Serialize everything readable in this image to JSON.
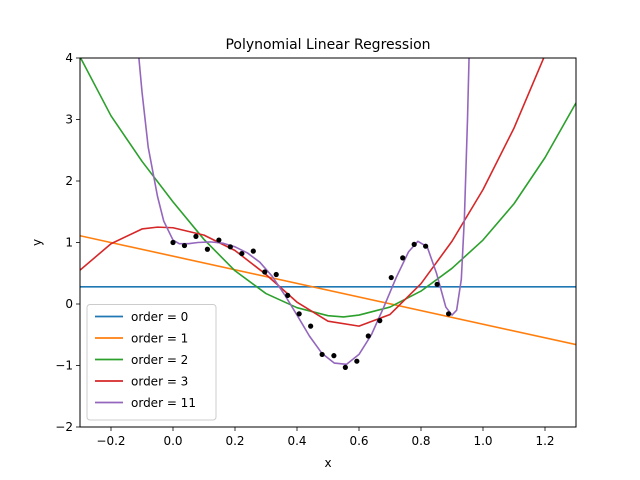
{
  "chart_data": {
    "type": "line",
    "title": "Polynomial Linear Regression",
    "xlabel": "x",
    "ylabel": "y",
    "xlim": [
      -0.3,
      1.3
    ],
    "ylim": [
      -2,
      4
    ],
    "x_ticks": [
      -0.2,
      0.0,
      0.2,
      0.4,
      0.6,
      0.8,
      1.0,
      1.2
    ],
    "x_tick_labels": [
      "−0.2",
      "0.0",
      "0.2",
      "0.4",
      "0.6",
      "0.8",
      "1.0",
      "1.2"
    ],
    "y_ticks": [
      -2,
      -1,
      0,
      1,
      2,
      3,
      4
    ],
    "y_tick_labels": [
      "−2",
      "−1",
      "0",
      "1",
      "2",
      "3",
      "4"
    ],
    "grid": false,
    "legend_position": "lower-left",
    "points": {
      "color": "#000000",
      "x": [
        0.0,
        0.037,
        0.074,
        0.111,
        0.148,
        0.185,
        0.222,
        0.259,
        0.296,
        0.333,
        0.37,
        0.407,
        0.444,
        0.481,
        0.519,
        0.556,
        0.593,
        0.63,
        0.667,
        0.704,
        0.741,
        0.778,
        0.815,
        0.852,
        0.889
      ],
      "y": [
        1.0,
        0.95,
        1.1,
        0.89,
        1.04,
        0.93,
        0.82,
        0.86,
        0.52,
        0.48,
        0.14,
        -0.16,
        -0.36,
        -0.82,
        -0.84,
        -1.03,
        -0.93,
        -0.52,
        -0.27,
        0.43,
        0.75,
        0.97,
        0.94,
        0.32,
        -0.16
      ]
    },
    "series": [
      {
        "name": "order = 0",
        "color": "#1f77b4",
        "x": [
          -0.3,
          1.3
        ],
        "y": [
          0.28,
          0.28
        ]
      },
      {
        "name": "order = 1",
        "color": "#ff7f0e",
        "x": [
          -0.3,
          1.3
        ],
        "y": [
          1.11,
          -0.66
        ]
      },
      {
        "name": "order = 2",
        "color": "#2ca02c",
        "x": [
          -0.3,
          -0.2,
          -0.1,
          0.0,
          0.1,
          0.2,
          0.3,
          0.4,
          0.5,
          0.55,
          0.6,
          0.7,
          0.8,
          0.9,
          1.0,
          1.1,
          1.2,
          1.3
        ],
        "y": [
          4.02,
          3.06,
          2.32,
          1.66,
          1.05,
          0.54,
          0.17,
          -0.06,
          -0.19,
          -0.21,
          -0.18,
          -0.05,
          0.21,
          0.58,
          1.04,
          1.63,
          2.38,
          3.27
        ]
      },
      {
        "name": "order = 3",
        "color": "#d62728",
        "x": [
          -0.3,
          -0.2,
          -0.1,
          -0.05,
          0.0,
          0.1,
          0.2,
          0.3,
          0.4,
          0.5,
          0.6,
          0.7,
          0.8,
          0.9,
          1.0,
          1.1,
          1.2
        ],
        "y": [
          0.55,
          0.98,
          1.22,
          1.25,
          1.24,
          1.12,
          0.87,
          0.48,
          0.03,
          -0.28,
          -0.36,
          -0.17,
          0.33,
          1.02,
          1.86,
          2.86,
          4.05
        ]
      },
      {
        "name": "order = 11",
        "color": "#9467bd",
        "x": [
          -0.11,
          -0.1,
          -0.08,
          -0.05,
          -0.03,
          0.0,
          0.02,
          0.05,
          0.08,
          0.12,
          0.16,
          0.2,
          0.24,
          0.28,
          0.32,
          0.36,
          0.4,
          0.44,
          0.48,
          0.52,
          0.56,
          0.6,
          0.64,
          0.68,
          0.72,
          0.76,
          0.79,
          0.82,
          0.85,
          0.88,
          0.9,
          0.915,
          0.93,
          0.94,
          0.95,
          0.955
        ],
        "y": [
          4.0,
          3.45,
          2.55,
          1.75,
          1.35,
          1.04,
          0.98,
          0.98,
          1.0,
          1.01,
          0.99,
          0.93,
          0.83,
          0.68,
          0.45,
          0.15,
          -0.18,
          -0.52,
          -0.8,
          -0.96,
          -0.98,
          -0.82,
          -0.5,
          -0.05,
          0.43,
          0.85,
          1.02,
          0.93,
          0.5,
          -0.05,
          -0.18,
          -0.1,
          0.4,
          1.4,
          3.0,
          4.0
        ]
      }
    ]
  }
}
